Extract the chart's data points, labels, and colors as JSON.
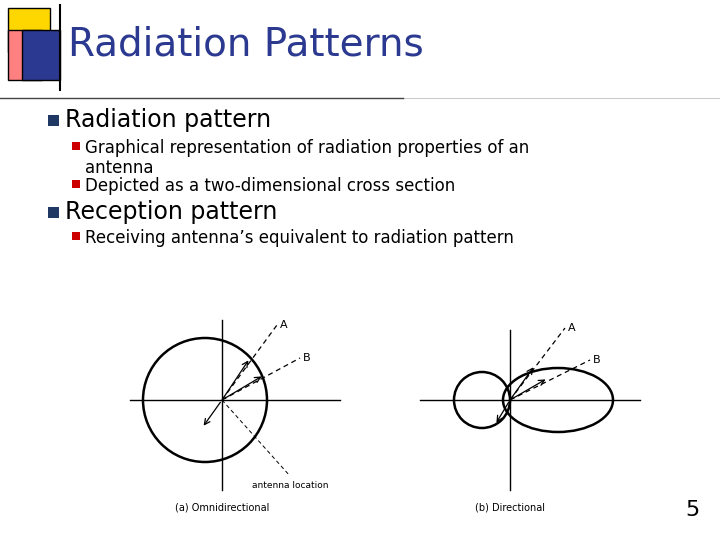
{
  "title": "Radiation Patterns",
  "title_color": "#2B3990",
  "title_fontsize": 28,
  "background_color": "#FFFFFF",
  "slide_number": "5",
  "bullet1": "Radiation pattern",
  "bullet1_fontsize": 17,
  "sub_bullet1_line1": "Graphical representation of radiation properties of an",
  "sub_bullet1_line2": "antenna",
  "sub_bullet2": "Depicted as a two-dimensional cross section",
  "sub_bullet_fontsize": 12,
  "bullet2": "Reception pattern",
  "bullet2_fontsize": 17,
  "sub_bullet3": "Receiving antenna’s equivalent to radiation pattern",
  "yellow_color": "#FFD700",
  "red_color": "#CC0000",
  "blue_color": "#2B3990",
  "pink_color": "#FF8080",
  "bullet_blue": "#1F3864",
  "bullet_red": "#CC0000"
}
